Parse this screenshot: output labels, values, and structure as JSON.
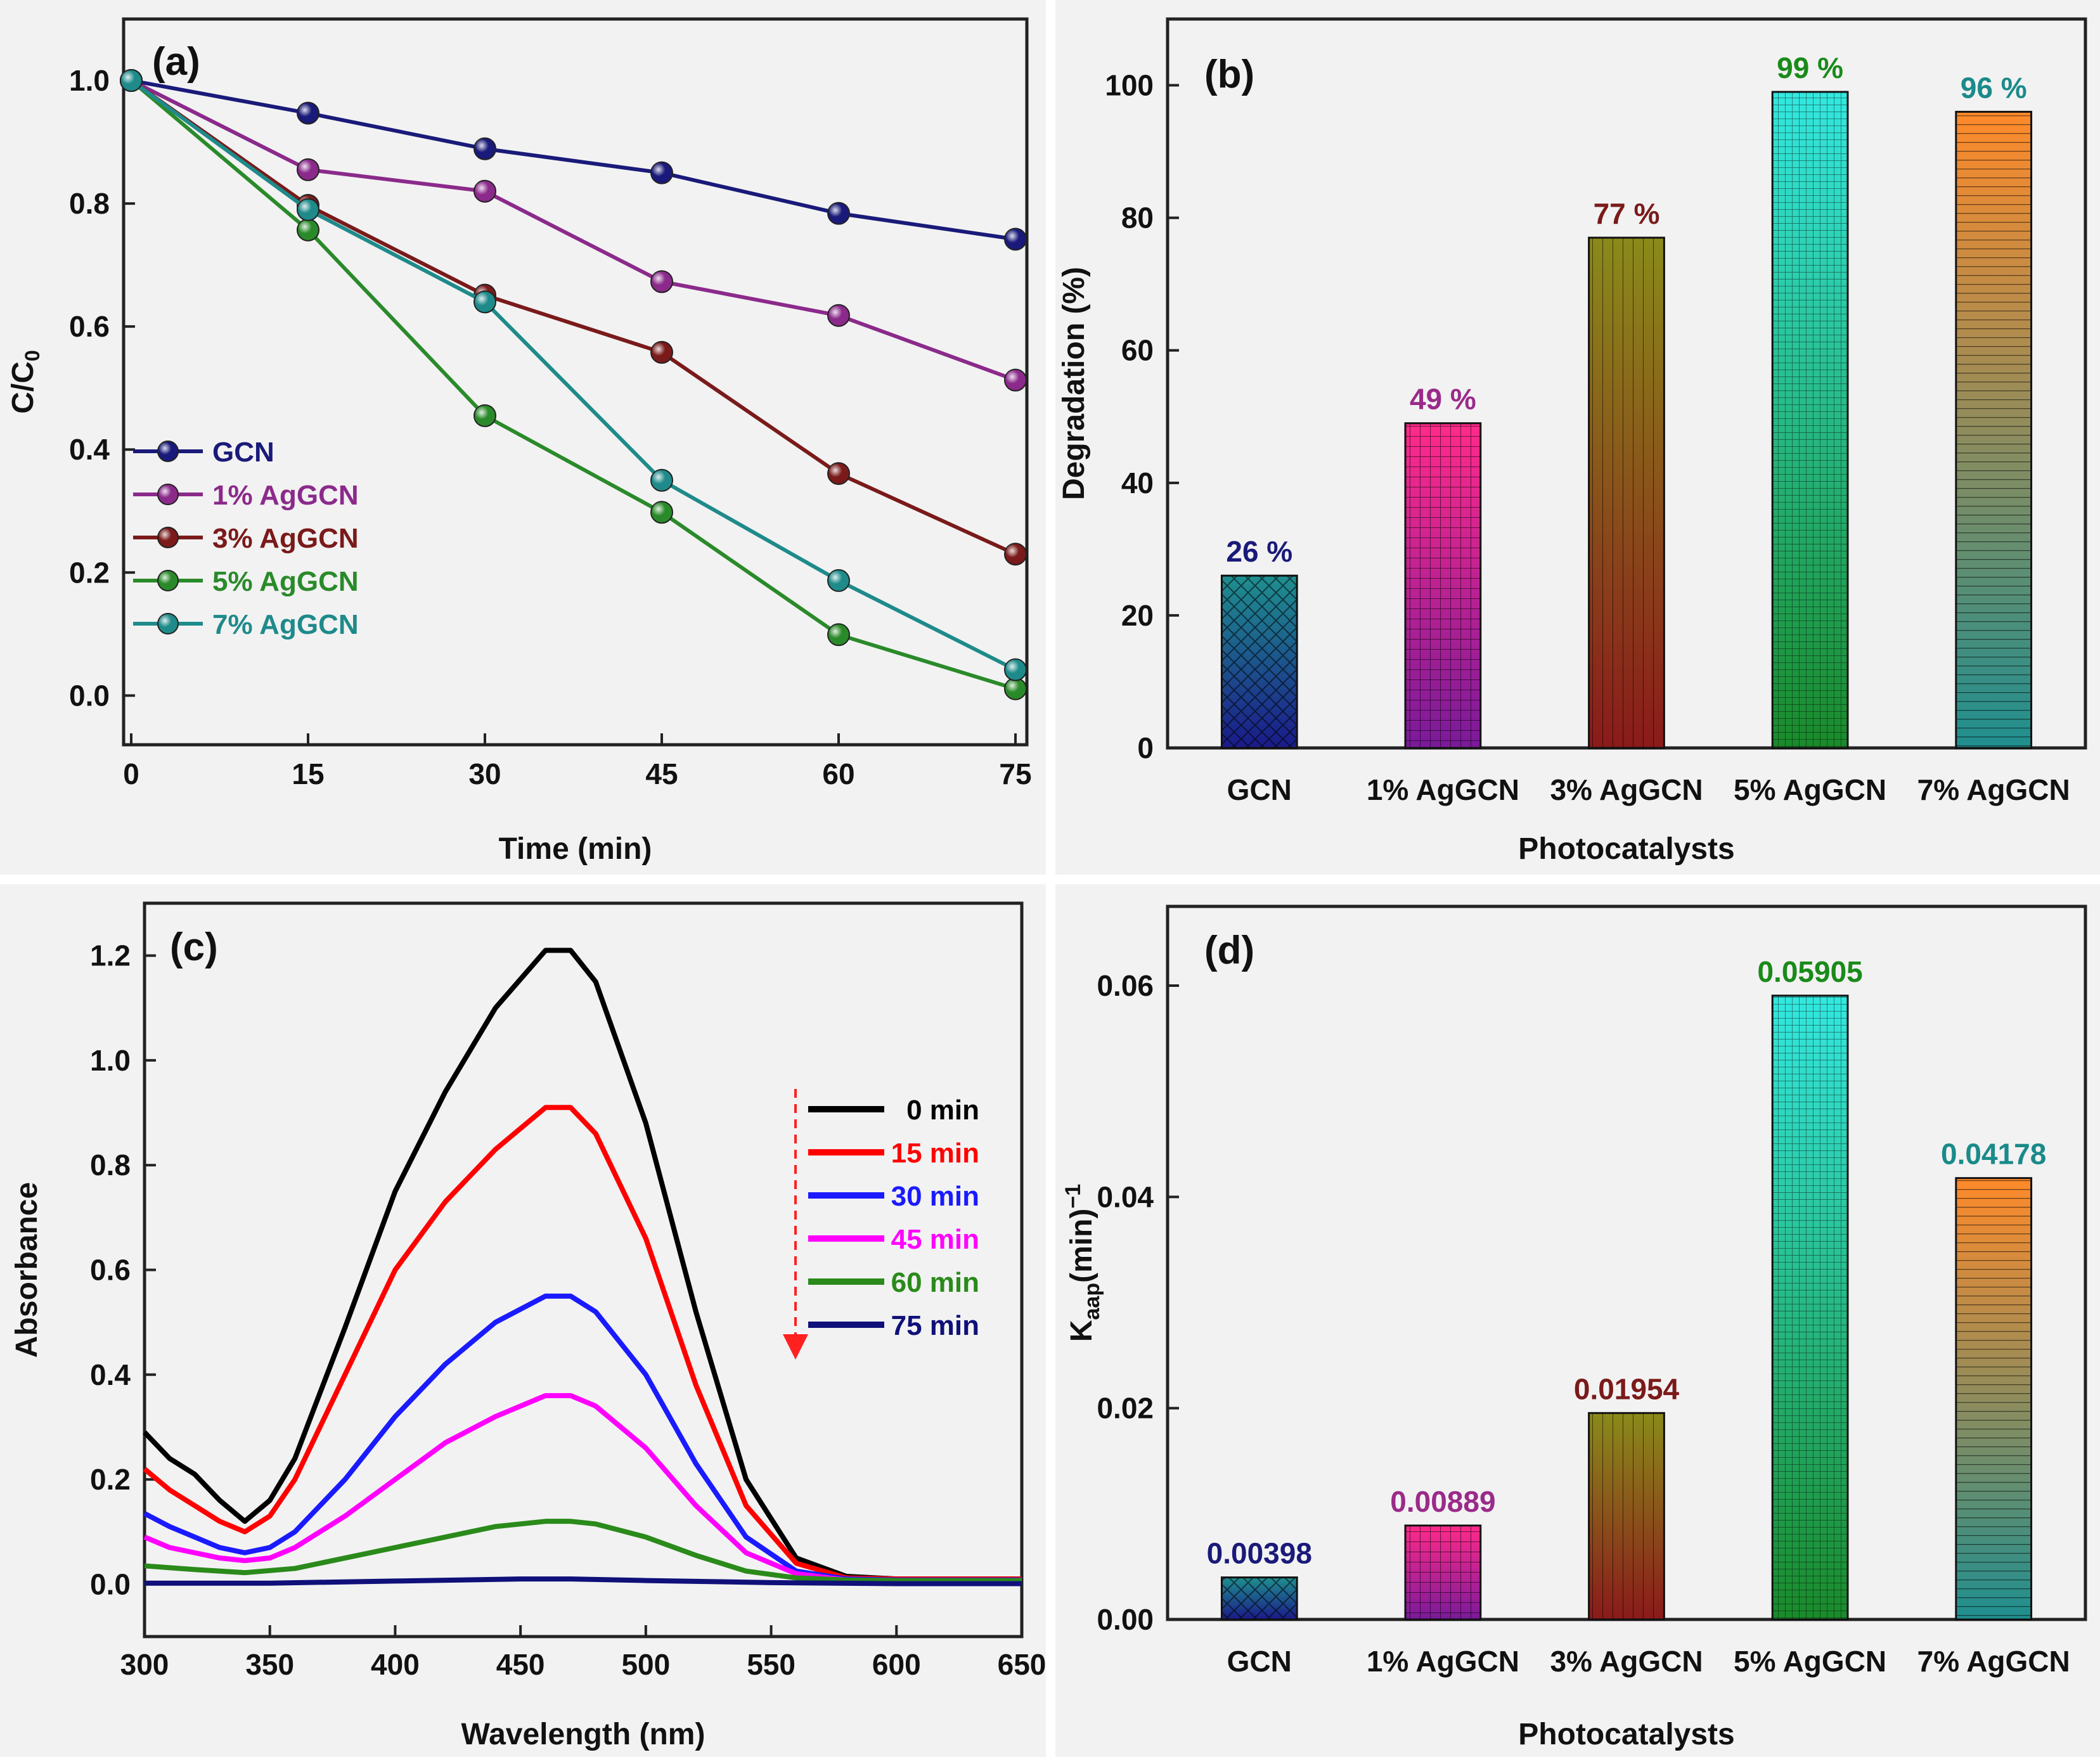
{
  "chart_data": [
    {
      "panel": "(a)",
      "type": "line",
      "xlabel": "Time (min)",
      "ylabel": "C/C0",
      "xlim": [
        0,
        75
      ],
      "ylim": [
        -0.08,
        1.1
      ],
      "x": [
        0,
        15,
        30,
        45,
        60,
        75
      ],
      "x_ticks": [
        0,
        15,
        30,
        45,
        60,
        75
      ],
      "y_ticks": [
        0.0,
        0.2,
        0.4,
        0.6,
        0.8,
        1.0
      ],
      "legend_position": "left",
      "series": [
        {
          "name": "GCN",
          "color": "#1a1a7a",
          "values": [
            1.0,
            0.947,
            0.889,
            0.85,
            0.784,
            0.742
          ]
        },
        {
          "name": "1% AgGCN",
          "color": "#8b2a8b",
          "values": [
            1.0,
            0.855,
            0.82,
            0.673,
            0.618,
            0.513
          ]
        },
        {
          "name": "3% AgGCN",
          "color": "#7a1a1a",
          "values": [
            1.0,
            0.797,
            0.651,
            0.558,
            0.361,
            0.23
          ]
        },
        {
          "name": "5% AgGCN",
          "color": "#2a8a2a",
          "values": [
            1.0,
            0.757,
            0.455,
            0.298,
            0.099,
            0.011
          ]
        },
        {
          "name": "7% AgGCN",
          "color": "#1f8a8a",
          "values": [
            1.0,
            0.79,
            0.64,
            0.35,
            0.187,
            0.042
          ]
        }
      ]
    },
    {
      "panel": "(b)",
      "type": "bar",
      "xlabel": "Photocatalysts",
      "ylabel": "Degradation   (%)",
      "ylim": [
        0,
        110
      ],
      "y_ticks": [
        0,
        20,
        40,
        60,
        80,
        100
      ],
      "categories": [
        "GCN",
        "1% AgGCN",
        "3% AgGCN",
        "5% AgGCN",
        "7% AgGCN"
      ],
      "values": [
        26,
        49,
        77,
        99,
        96
      ],
      "data_labels": [
        "26 %",
        "49 %",
        "77 %",
        "99 %",
        "96 %"
      ],
      "colors": [
        "#1a1a7a",
        "#9a2a8a",
        "#7a1a1a",
        "#1a8a1a",
        "#1a8a8a"
      ]
    },
    {
      "panel": "(c)",
      "type": "line",
      "xlabel": "Wavelength (nm)",
      "ylabel": "Absorbance",
      "xlim": [
        300,
        650
      ],
      "ylim": [
        -0.1,
        1.3
      ],
      "x_ticks": [
        300,
        350,
        400,
        450,
        500,
        550,
        600,
        650
      ],
      "y_ticks": [
        0.0,
        0.2,
        0.4,
        0.6,
        0.8,
        1.0,
        1.2
      ],
      "legend_position": "right",
      "series": [
        {
          "name": "0 min",
          "color": "#000000",
          "x": [
            300,
            310,
            320,
            330,
            340,
            350,
            360,
            380,
            400,
            420,
            440,
            460,
            470,
            480,
            500,
            520,
            540,
            560,
            580,
            600,
            650
          ],
          "values": [
            0.29,
            0.24,
            0.21,
            0.16,
            0.12,
            0.16,
            0.24,
            0.49,
            0.75,
            0.94,
            1.1,
            1.21,
            1.21,
            1.15,
            0.88,
            0.52,
            0.2,
            0.05,
            0.015,
            0.01,
            0.01
          ]
        },
        {
          "name": "15 min",
          "color": "#ff0000",
          "x": [
            300,
            310,
            320,
            330,
            340,
            350,
            360,
            380,
            400,
            420,
            440,
            460,
            470,
            480,
            500,
            520,
            540,
            560,
            580,
            600,
            650
          ],
          "values": [
            0.22,
            0.18,
            0.15,
            0.12,
            0.1,
            0.13,
            0.2,
            0.4,
            0.6,
            0.73,
            0.83,
            0.91,
            0.91,
            0.86,
            0.66,
            0.38,
            0.15,
            0.04,
            0.012,
            0.01,
            0.01
          ]
        },
        {
          "name": "30 min",
          "color": "#1a1aff",
          "x": [
            300,
            310,
            320,
            330,
            340,
            350,
            360,
            380,
            400,
            420,
            440,
            460,
            470,
            480,
            500,
            520,
            540,
            560,
            580,
            600,
            650
          ],
          "values": [
            0.135,
            0.11,
            0.09,
            0.07,
            0.06,
            0.07,
            0.1,
            0.2,
            0.32,
            0.42,
            0.5,
            0.55,
            0.55,
            0.52,
            0.4,
            0.23,
            0.09,
            0.025,
            0.01,
            0.008,
            0.008
          ]
        },
        {
          "name": "45 min",
          "color": "#ff00ff",
          "x": [
            300,
            310,
            320,
            330,
            340,
            350,
            360,
            380,
            400,
            420,
            440,
            460,
            470,
            480,
            500,
            520,
            540,
            560,
            580,
            600,
            650
          ],
          "values": [
            0.09,
            0.07,
            0.06,
            0.05,
            0.045,
            0.05,
            0.07,
            0.13,
            0.2,
            0.27,
            0.32,
            0.36,
            0.36,
            0.34,
            0.26,
            0.15,
            0.06,
            0.02,
            0.008,
            0.007,
            0.007
          ]
        },
        {
          "name": "60 min",
          "color": "#2a8a1a",
          "x": [
            300,
            320,
            340,
            360,
            380,
            400,
            420,
            440,
            460,
            470,
            480,
            500,
            520,
            540,
            560,
            580,
            600,
            650
          ],
          "values": [
            0.035,
            0.028,
            0.022,
            0.03,
            0.05,
            0.07,
            0.09,
            0.11,
            0.12,
            0.12,
            0.115,
            0.09,
            0.055,
            0.025,
            0.012,
            0.008,
            0.007,
            0.007
          ]
        },
        {
          "name": "75 min",
          "color": "#10107a",
          "x": [
            300,
            350,
            400,
            450,
            470,
            500,
            550,
            600,
            650
          ],
          "values": [
            0.002,
            0.002,
            0.006,
            0.01,
            0.01,
            0.007,
            0.003,
            0.001,
            0.001
          ]
        }
      ]
    },
    {
      "panel": "(d)",
      "type": "bar",
      "xlabel": "Photocatalysts",
      "ylabel": "Kaap(min)−1",
      "ylim": [
        0,
        0.0675
      ],
      "y_ticks": [
        0.0,
        0.02,
        0.04,
        0.06
      ],
      "y_tick_labels": [
        "0.00",
        "0.02",
        "0.04",
        "0.06"
      ],
      "categories": [
        "GCN",
        "1% AgGCN",
        "3% AgGCN",
        "5% AgGCN",
        "7% AgGCN"
      ],
      "values": [
        0.00398,
        0.00889,
        0.01954,
        0.05905,
        0.04178
      ],
      "data_labels": [
        "0.00398",
        "0.00889",
        "0.01954",
        "0.05905",
        "0.04178"
      ],
      "colors": [
        "#1a1a7a",
        "#9a2a8a",
        "#7a1a1a",
        "#1a8a1a",
        "#1a8a8a"
      ]
    }
  ]
}
